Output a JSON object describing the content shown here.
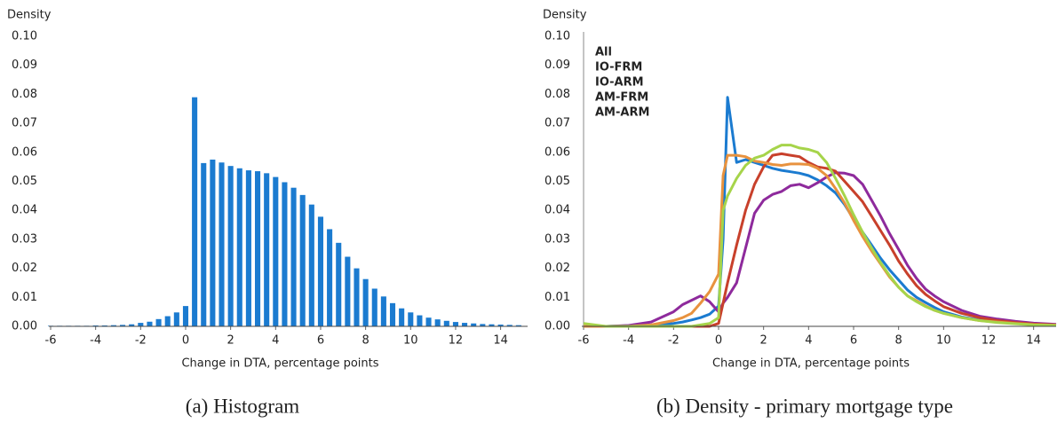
{
  "chart_data": [
    {
      "type": "histogram",
      "ylabel": "Density",
      "xlabel": "Change in DTA, percentage points",
      "caption": "(a) Histogram",
      "color": "#1b7bd0",
      "bins": [
        -6.2,
        -5.8,
        -5.4,
        -5.0,
        -4.6,
        -4.2,
        -3.8,
        -3.4,
        -3.0,
        -2.6,
        -2.2,
        -1.8,
        -1.4,
        -1.0,
        -0.6,
        -0.2,
        0.2,
        0.6,
        1.0,
        1.4,
        1.8,
        2.2,
        2.6,
        3.0,
        3.4,
        3.8,
        4.2,
        4.6,
        5.0,
        5.4,
        5.8,
        6.2,
        6.6,
        7.0,
        7.4,
        7.8,
        8.2,
        8.6,
        9.0,
        9.4,
        9.8,
        10.2,
        10.6,
        11.0,
        11.4,
        11.8,
        12.2,
        12.6,
        13.0,
        13.4,
        13.8,
        14.2,
        14.6,
        15.0
      ],
      "values": [
        0.0002,
        0.0002,
        0.0002,
        0.0002,
        0.0002,
        0.0003,
        0.0003,
        0.0004,
        0.0005,
        0.0007,
        0.0012,
        0.0016,
        0.0025,
        0.0035,
        0.0048,
        0.007,
        0.079,
        0.0563,
        0.0575,
        0.0565,
        0.0553,
        0.0545,
        0.0538,
        0.0535,
        0.0528,
        0.0515,
        0.0497,
        0.0478,
        0.0453,
        0.042,
        0.0378,
        0.0335,
        0.0288,
        0.024,
        0.02,
        0.0163,
        0.013,
        0.0103,
        0.008,
        0.0062,
        0.0048,
        0.0038,
        0.003,
        0.0024,
        0.0019,
        0.0015,
        0.0012,
        0.001,
        0.0008,
        0.0007,
        0.0006,
        0.0005,
        0.0004
      ],
      "xlim": [
        -6,
        15.2
      ],
      "xticks": [
        -6,
        -4,
        -2,
        0,
        2,
        4,
        6,
        8,
        10,
        12,
        14
      ],
      "ylim": [
        0,
        0.1
      ],
      "yticks": [
        {
          "value": 0,
          "label": "0.00"
        },
        0.01,
        0.02,
        0.03,
        0.04,
        0.05,
        0.06,
        0.07,
        0.08,
        0.09,
        {
          "value": 0.1,
          "label": "0.10"
        }
      ]
    },
    {
      "type": "line",
      "ylabel": "Density",
      "xlabel": "Change in DTA, percentage points",
      "caption": "(b) Density - primary mortgage type",
      "x": [
        -6,
        -5,
        -4,
        -3,
        -2,
        -1.6,
        -1.2,
        -0.8,
        -0.4,
        0,
        0.2,
        0.4,
        0.8,
        1.2,
        1.6,
        2,
        2.4,
        2.8,
        3.2,
        3.6,
        4,
        4.4,
        4.8,
        5.2,
        5.6,
        6,
        6.4,
        6.8,
        7.2,
        7.6,
        8,
        8.4,
        8.8,
        9.2,
        9.6,
        10,
        10.8,
        11.6,
        12.4,
        13.2,
        14,
        15
      ],
      "xlim": [
        -6,
        15
      ],
      "xticks": [
        -6,
        -4,
        -2,
        0,
        2,
        4,
        6,
        8,
        10,
        12,
        14
      ],
      "ylim": [
        0,
        0.1
      ],
      "yticks": [
        {
          "value": 0,
          "label": "0.00"
        },
        0.01,
        0.02,
        0.03,
        0.04,
        0.05,
        0.06,
        0.07,
        0.08,
        0.09,
        {
          "value": 0.1,
          "label": "0.10"
        }
      ],
      "series": [
        {
          "name": "All",
          "color": "#1b7bd0",
          "values": [
            0,
            0,
            0.0002,
            0.0004,
            0.001,
            0.0015,
            0.0022,
            0.003,
            0.0042,
            0.007,
            0.03,
            0.079,
            0.0565,
            0.0575,
            0.0565,
            0.0555,
            0.0545,
            0.0538,
            0.0533,
            0.0528,
            0.052,
            0.0505,
            0.0485,
            0.046,
            0.042,
            0.037,
            0.0325,
            0.028,
            0.0235,
            0.0195,
            0.016,
            0.0125,
            0.01,
            0.0082,
            0.0065,
            0.005,
            0.0032,
            0.0022,
            0.0015,
            0.001,
            0.0006,
            0.0004
          ]
        },
        {
          "name": "IO-FRM",
          "color": "#8e2a9c",
          "values": [
            0,
            0,
            0.0003,
            0.0015,
            0.005,
            0.0075,
            0.009,
            0.0105,
            0.0085,
            0.005,
            0.008,
            0.01,
            0.015,
            0.027,
            0.039,
            0.0435,
            0.0455,
            0.0465,
            0.0485,
            0.049,
            0.0478,
            0.0495,
            0.0515,
            0.053,
            0.0528,
            0.052,
            0.049,
            0.0435,
            0.038,
            0.032,
            0.0265,
            0.021,
            0.0165,
            0.0128,
            0.0105,
            0.0085,
            0.0055,
            0.0035,
            0.0025,
            0.0017,
            0.0011,
            0.0007
          ]
        },
        {
          "name": "IO-ARM",
          "color": "#c8402b",
          "values": [
            0,
            0,
            0,
            0,
            0,
            0,
            0,
            0,
            0,
            0.001,
            0.008,
            0.015,
            0.028,
            0.04,
            0.049,
            0.055,
            0.059,
            0.0595,
            0.059,
            0.0585,
            0.0565,
            0.055,
            0.0545,
            0.0535,
            0.05,
            0.0465,
            0.043,
            0.038,
            0.033,
            0.028,
            0.0225,
            0.018,
            0.014,
            0.011,
            0.0088,
            0.0068,
            0.0045,
            0.003,
            0.002,
            0.0013,
            0.0008,
            0.0005
          ]
        },
        {
          "name": "AM-FRM",
          "color": "#e8923e",
          "values": [
            0,
            0,
            0,
            0.0005,
            0.002,
            0.003,
            0.0045,
            0.008,
            0.012,
            0.018,
            0.052,
            0.059,
            0.059,
            0.0585,
            0.057,
            0.0565,
            0.0558,
            0.0555,
            0.056,
            0.056,
            0.0558,
            0.0545,
            0.052,
            0.0475,
            0.0425,
            0.0365,
            0.031,
            0.026,
            0.0215,
            0.017,
            0.0135,
            0.0105,
            0.0088,
            0.007,
            0.0055,
            0.0045,
            0.003,
            0.002,
            0.0015,
            0.001,
            0.0006,
            0.0004
          ]
        },
        {
          "name": "AM-ARM",
          "color": "#a6d44a",
          "values": [
            0.001,
            0,
            0,
            0,
            0,
            0,
            0,
            0.0005,
            0.001,
            0.003,
            0.04,
            0.045,
            0.051,
            0.0555,
            0.058,
            0.059,
            0.061,
            0.0625,
            0.0625,
            0.0615,
            0.061,
            0.06,
            0.0565,
            0.051,
            0.045,
            0.0385,
            0.0325,
            0.027,
            0.022,
            0.0175,
            0.0135,
            0.0105,
            0.0085,
            0.0068,
            0.0055,
            0.0045,
            0.003,
            0.002,
            0.0013,
            0.0009,
            0.0005,
            0.0003
          ]
        }
      ]
    }
  ]
}
